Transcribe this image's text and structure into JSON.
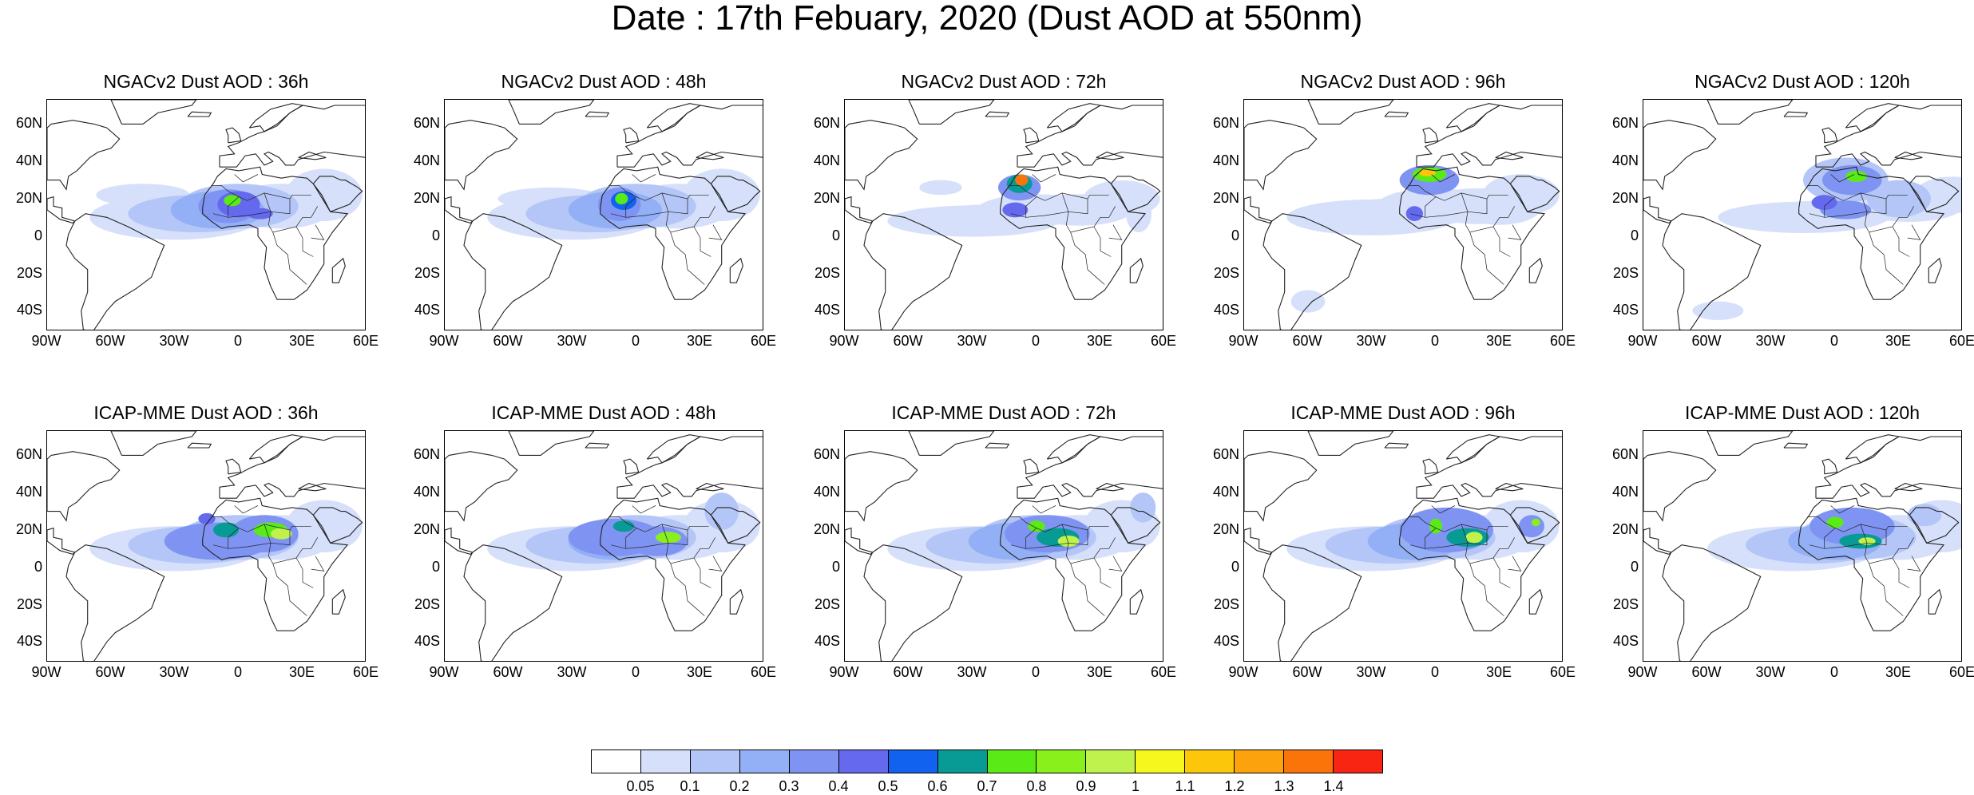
{
  "title": "Date : 17th Febuary, 2020 (Dust AOD at 550nm)",
  "panels": [
    {
      "row": 0,
      "col": 0,
      "title": "NGACv2 Dust AOD : 36h"
    },
    {
      "row": 0,
      "col": 1,
      "title": "NGACv2 Dust AOD : 48h"
    },
    {
      "row": 0,
      "col": 2,
      "title": "NGACv2 Dust AOD : 72h"
    },
    {
      "row": 0,
      "col": 3,
      "title": "NGACv2 Dust AOD : 96h"
    },
    {
      "row": 0,
      "col": 4,
      "title": "NGACv2 Dust AOD : 120h"
    },
    {
      "row": 1,
      "col": 0,
      "title": "ICAP-MME Dust AOD : 36h"
    },
    {
      "row": 1,
      "col": 1,
      "title": "ICAP-MME Dust AOD : 48h"
    },
    {
      "row": 1,
      "col": 2,
      "title": "ICAP-MME Dust AOD : 72h"
    },
    {
      "row": 1,
      "col": 3,
      "title": "ICAP-MME Dust AOD : 96h"
    },
    {
      "row": 1,
      "col": 4,
      "title": "ICAP-MME Dust AOD : 120h"
    }
  ],
  "lat_ticks": [
    "60N",
    "40N",
    "20N",
    "0",
    "20S",
    "40S"
  ],
  "lon_ticks": [
    "90W",
    "60W",
    "30W",
    "0",
    "30E",
    "60E"
  ],
  "colorbar": {
    "colors": [
      "#ffffff",
      "#d6e0fa",
      "#b4c6f7",
      "#93aff5",
      "#7f94f2",
      "#6469ee",
      "#1262f0",
      "#089b95",
      "#5aeb17",
      "#8af01b",
      "#c0f24e",
      "#f6f71d",
      "#fcc70b",
      "#fca20c",
      "#fb7409",
      "#f92513"
    ],
    "labels": [
      "0.05",
      "0.1",
      "0.2",
      "0.3",
      "0.4",
      "0.5",
      "0.6",
      "0.7",
      "0.8",
      "0.9",
      "1",
      "1.1",
      "1.2",
      "1.3",
      "1.4"
    ]
  }
}
